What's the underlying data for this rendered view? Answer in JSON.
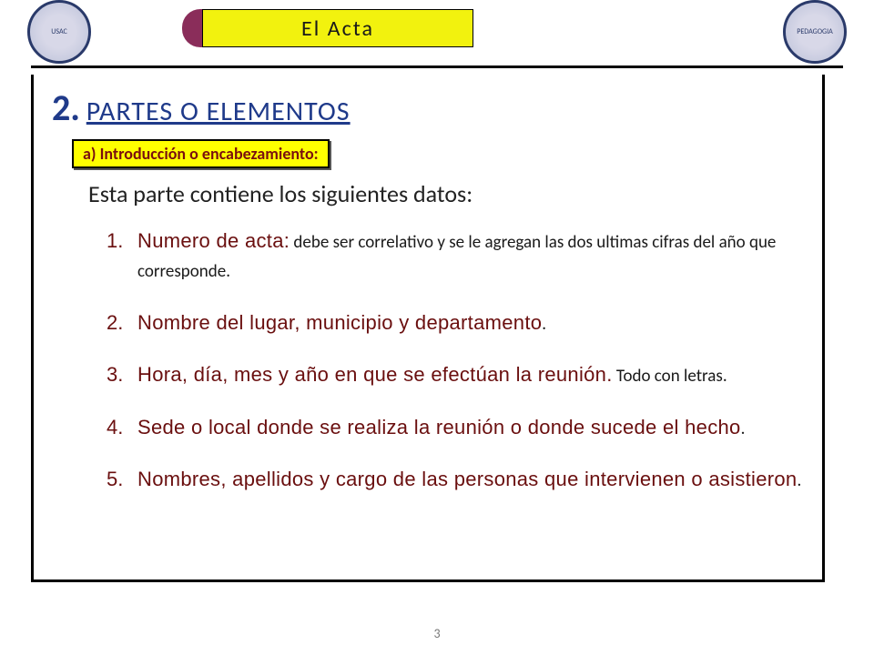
{
  "slide": {
    "title": "El  Acta",
    "title_bg": "#f2f20e",
    "title_border": "#000000",
    "tab_accent": "#8a2d5a",
    "page_number": "3",
    "logos": {
      "left_alt": "USAC",
      "right_alt": "PEDAGOGIA"
    },
    "heading": {
      "number": "2",
      "sep": ".",
      "text": "PARTES  O  ELEMENTOS",
      "color": "#1f3a8a"
    },
    "sub": {
      "text": "a)  Introducción o encabezamiento",
      "colon": ":",
      "bg": "#ffff00",
      "text_color": "#7a0f0f"
    },
    "lead": "Esta  parte contiene  los siguientes  datos:",
    "items": [
      {
        "n": "1.",
        "strong": "Numero de acta:",
        "rest": " debe ser correlativo y se le agregan las dos ultimas cifras del año que corresponde."
      },
      {
        "n": "2.",
        "strong": "Nombre del lugar, municipio y departamento",
        "rest": "."
      },
      {
        "n": "3.",
        "strong": "Hora, día, mes y año en que se efectúan la reunión.",
        "rest": " Todo con letras."
      },
      {
        "n": "4.",
        "strong": "Sede o local donde se realiza la reunión o donde sucede el hecho",
        "rest": "."
      },
      {
        "n": "5.",
        "strong": "Nombres, apellidos y cargo de las personas que intervienen o asistieron",
        "rest": "."
      }
    ],
    "colors": {
      "item_accent": "#6a0f0f",
      "body_text": "#1a1a1a",
      "rule": "#000000",
      "shadow": "#3a3a3a",
      "background": "#ffffff"
    },
    "fonts": {
      "title_size_pt": 24,
      "heading_num_size_pt": 40,
      "heading_text_size_pt": 30,
      "sub_size_pt": 18,
      "lead_size_pt": 26,
      "item_strong_size_pt": 22,
      "item_body_size_pt": 19,
      "pagenum_size_pt": 14
    }
  }
}
